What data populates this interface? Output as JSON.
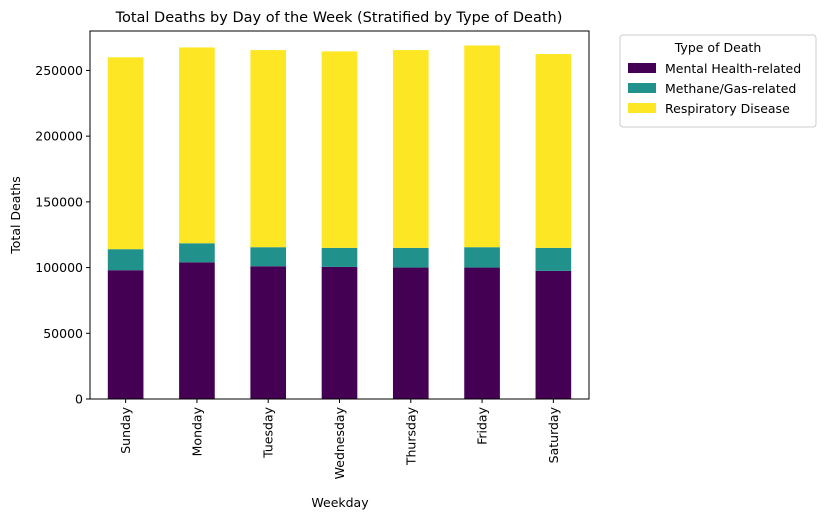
{
  "chart_data": {
    "type": "bar",
    "stacked": true,
    "title": "Total Deaths by Day of the Week (Stratified by Type of Death)",
    "xlabel": "Weekday",
    "ylabel": "Total Deaths",
    "categories": [
      "Sunday",
      "Monday",
      "Tuesday",
      "Wednesday",
      "Thursday",
      "Friday",
      "Saturday"
    ],
    "ylim": [
      0,
      280000
    ],
    "yticks": [
      0,
      50000,
      100000,
      150000,
      200000,
      250000
    ],
    "ytick_labels": [
      "0",
      "50000",
      "100000",
      "150000",
      "200000",
      "250000"
    ],
    "grid": false,
    "legend": {
      "title": "Type of Death",
      "placement": "outside upper right"
    },
    "series": [
      {
        "name": "Mental Health-related",
        "color": "#440154",
        "values": [
          98000,
          104000,
          101000,
          100500,
          100000,
          100000,
          97500
        ]
      },
      {
        "name": "Methane/Gas-related",
        "color": "#21918c",
        "values": [
          16000,
          14500,
          14500,
          14500,
          15000,
          15500,
          17500
        ]
      },
      {
        "name": "Respiratory Disease",
        "color": "#fde725",
        "values": [
          146000,
          149000,
          150000,
          149500,
          150500,
          153500,
          147500
        ]
      }
    ]
  }
}
